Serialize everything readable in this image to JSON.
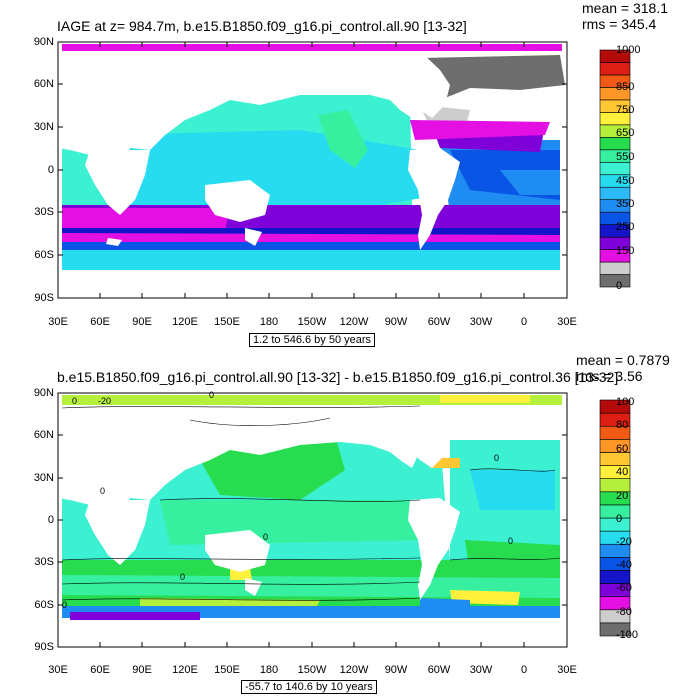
{
  "panels": [
    {
      "title": "IAGE at z= 984.7m, b.e15.B1850.f09_g16.pi_control.all.90 [13-32]",
      "mean_text": "mean = 318.1",
      "rms_text": "rms = 345.4",
      "contour_note": "1.2 to 546.6 by 50 years",
      "colorbar_labels": [
        "1000",
        "850",
        "750",
        "650",
        "550",
        "450",
        "350",
        "250",
        "150",
        "0"
      ]
    },
    {
      "title": "b.e15.B1850.f09_g16.pi_control.all.90 [13-32] - b.e15.B1850.f09_g16.pi_control.36 [13-32]",
      "mean_text": "mean = 0.7879",
      "rms_text": "rms = 3.56",
      "contour_note": "-55.7 to 140.6 by 10 years",
      "colorbar_labels": [
        "100",
        "80",
        "60",
        "40",
        "20",
        "0",
        "-20",
        "-40",
        "-60",
        "-80",
        "-100"
      ],
      "inline_labels": [
        "-20",
        "0",
        "0",
        "0",
        "0",
        "0",
        "0",
        "0",
        "0"
      ]
    }
  ],
  "axes": {
    "lat_labels": [
      "90N",
      "60N",
      "30N",
      "0",
      "30S",
      "60S",
      "90S"
    ],
    "lon_labels": [
      "30E",
      "60E",
      "90E",
      "120E",
      "150E",
      "180",
      "150W",
      "120W",
      "90W",
      "60W",
      "30W",
      "0",
      "30E"
    ]
  },
  "colors": {
    "iage": [
      "#6e6e6e",
      "#cdcdcd",
      "#e30fe3",
      "#7f00d8",
      "#1414c8",
      "#0a55e6",
      "#1e8cf0",
      "#2db9f5",
      "#28dcf0",
      "#3cf0d2",
      "#36f0a0",
      "#28dc50",
      "#b4f03c",
      "#fff03c",
      "#ffc832",
      "#ff9628",
      "#f05a14",
      "#dc1e14",
      "#b40a0a"
    ],
    "diff": [
      "#6e6e6e",
      "#cdcdcd",
      "#e30fe3",
      "#7f00d8",
      "#1414c8",
      "#0a55e6",
      "#1e8cf0",
      "#28dcf0",
      "#3cf0d2",
      "#36f0a0",
      "#28dc50",
      "#b4f03c",
      "#fff03c",
      "#ffc832",
      "#ff9628",
      "#f05a14",
      "#dc1e14",
      "#b40a0a"
    ],
    "land": "#ffffff",
    "ice_grey": "#6e6e6e",
    "ice_light": "#cdcdcd"
  }
}
